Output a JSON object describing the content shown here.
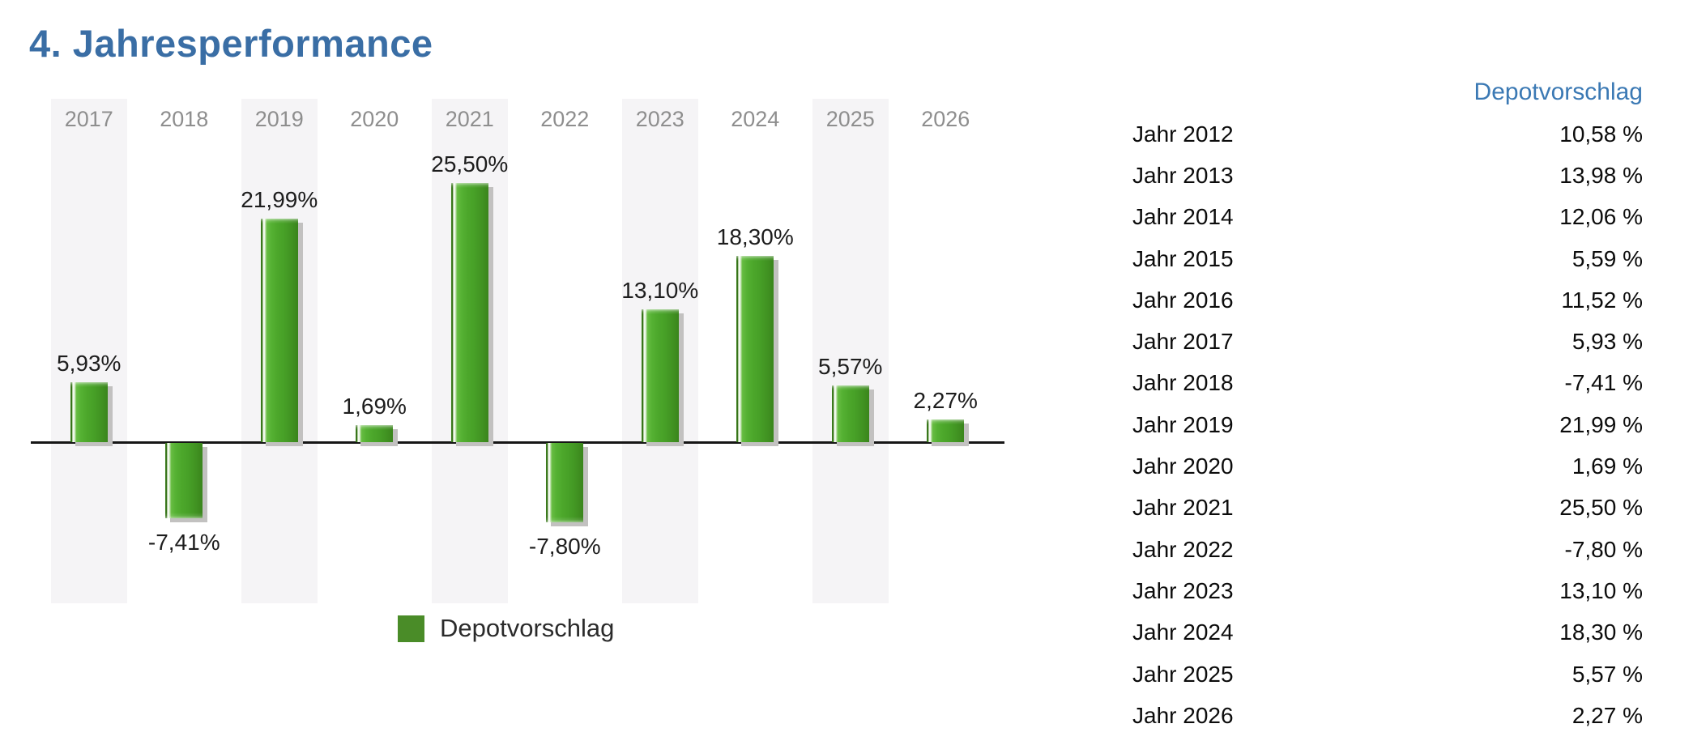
{
  "title": "4. Jahresperformance",
  "colors": {
    "title_blue": "#3a6ea5",
    "table_header_blue": "#3b79b4",
    "bar_green_mid": "#4ca72b",
    "bar_green_dark": "#3a851c",
    "bar_highlight": "#ffffff",
    "bar_shadow_gray": "#c2c1c0",
    "band_gray": "#f5f4f6",
    "year_label_gray": "#8e8e8e",
    "axis_black": "#161616",
    "legend_swatch_green": "#4a8c28"
  },
  "chart_data": {
    "type": "bar",
    "title": "",
    "xlabel": "",
    "ylabel": "",
    "categories": [
      "2017",
      "2018",
      "2019",
      "2020",
      "2021",
      "2022",
      "2023",
      "2024",
      "2025",
      "2026"
    ],
    "series": [
      {
        "name": "Depotvorschlag",
        "values": [
          5.93,
          -7.41,
          21.99,
          1.69,
          25.5,
          -7.8,
          13.1,
          18.3,
          5.57,
          2.27
        ]
      }
    ],
    "bar_labels": [
      "5,93%",
      "-7,41%",
      "21,99%",
      "1,69%",
      "25,50%",
      "-7,80%",
      "13,10%",
      "18,30%",
      "5,57%",
      "2,27%"
    ],
    "ylim": [
      -16,
      34
    ],
    "grid": false,
    "baseline": 0,
    "legend_position": "bottom",
    "background_bands": "alternating light gray behind odd columns"
  },
  "legend": {
    "label": "Depotvorschlag"
  },
  "table": {
    "header": "Depotvorschlag",
    "rows": [
      {
        "label": "Jahr 2012",
        "value": "10,58 %"
      },
      {
        "label": "Jahr 2013",
        "value": "13,98 %"
      },
      {
        "label": "Jahr 2014",
        "value": "12,06 %"
      },
      {
        "label": "Jahr 2015",
        "value": "5,59 %"
      },
      {
        "label": "Jahr 2016",
        "value": "11,52 %"
      },
      {
        "label": "Jahr 2017",
        "value": "5,93 %"
      },
      {
        "label": "Jahr 2018",
        "value": "-7,41 %"
      },
      {
        "label": "Jahr 2019",
        "value": "21,99 %"
      },
      {
        "label": "Jahr 2020",
        "value": "1,69 %"
      },
      {
        "label": "Jahr 2021",
        "value": "25,50 %"
      },
      {
        "label": "Jahr 2022",
        "value": "-7,80 %"
      },
      {
        "label": "Jahr 2023",
        "value": "13,10 %"
      },
      {
        "label": "Jahr 2024",
        "value": "18,30 %"
      },
      {
        "label": "Jahr 2025",
        "value": "5,57 %"
      },
      {
        "label": "Jahr 2026",
        "value": "2,27 %"
      }
    ]
  }
}
